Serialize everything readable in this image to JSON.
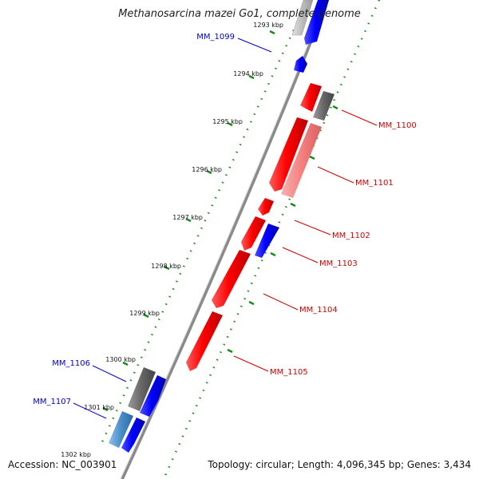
{
  "title": "Methanosarcina mazei Go1, complete genome",
  "accession": "Accession: NC_003901",
  "topology": "Topology: circular; Length: 4,096,345 bp; Genes: 3,434",
  "colors": {
    "forward": "#0000ff",
    "reverse": "#ff0000",
    "reverse_light": "#f48080",
    "hypothetical": "#666666",
    "hypothetical_light": "#bbbbbb",
    "alt": "#4a8ec8",
    "gc_ticks": "#1a8a1a",
    "backbone": "#888888",
    "label_blue": "#0000cc",
    "label_red": "#cc0000"
  },
  "ticks": [
    {
      "kbp": 1293,
      "label": "1293 kbp"
    },
    {
      "kbp": 1294,
      "label": "1294 kbp"
    },
    {
      "kbp": 1295,
      "label": "1295 kbp"
    },
    {
      "kbp": 1296,
      "label": "1296 kbp"
    },
    {
      "kbp": 1297,
      "label": "1297 kbp"
    },
    {
      "kbp": 1298,
      "label": "1298 kbp"
    },
    {
      "kbp": 1299,
      "label": "1299 kbp"
    },
    {
      "kbp": 1300,
      "label": "1300 kbp"
    },
    {
      "kbp": 1301,
      "label": "1301 kbp"
    },
    {
      "kbp": 1302,
      "label": "1302 kbp"
    }
  ],
  "gene_labels": [
    {
      "name": "MM_1099",
      "color": "label_blue"
    },
    {
      "name": "MM_1100",
      "color": "label_red"
    },
    {
      "name": "MM_1101",
      "color": "label_red"
    },
    {
      "name": "MM_1102",
      "color": "label_red"
    },
    {
      "name": "MM_1103",
      "color": "label_red"
    },
    {
      "name": "MM_1104",
      "color": "label_red"
    },
    {
      "name": "MM_1105",
      "color": "label_red"
    },
    {
      "name": "MM_1106",
      "color": "label_blue"
    },
    {
      "name": "MM_1107",
      "color": "label_blue"
    }
  ]
}
